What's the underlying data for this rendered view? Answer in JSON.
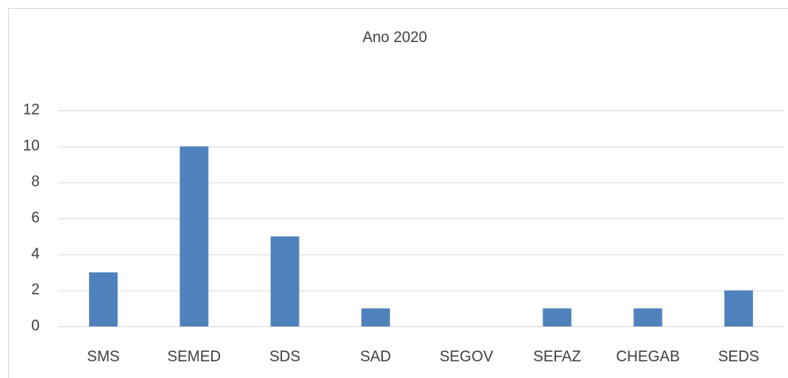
{
  "chart_data": {
    "type": "bar",
    "title": "Ano 2020",
    "categories": [
      "SMS",
      "SEMED",
      "SDS",
      "SAD",
      "SEGOV",
      "SEFAZ",
      "CHEGAB",
      "SEDS"
    ],
    "values": [
      3,
      10,
      5,
      1,
      0,
      1,
      1,
      2
    ],
    "color": "#4f81bd",
    "ylim": [
      0,
      12
    ],
    "yticks": [
      0,
      2,
      4,
      6,
      8,
      10,
      12
    ],
    "grid": true
  }
}
